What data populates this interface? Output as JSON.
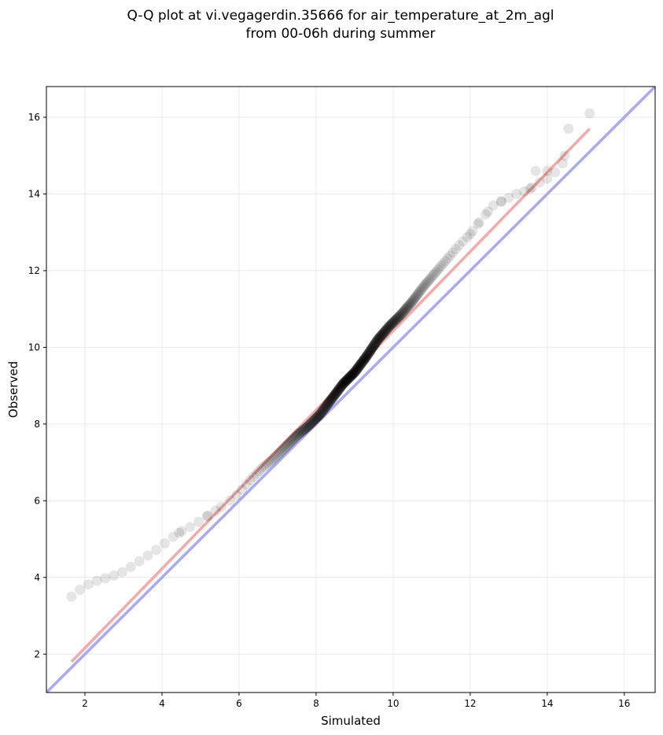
{
  "chart_data": {
    "type": "scatter",
    "title_lines": [
      "Q-Q plot at vi.vegagerdin.35666 for air_temperature_at_2m_agl",
      "from 00-06h during summer"
    ],
    "xlabel": "Simulated",
    "ylabel": "Observed",
    "xlim": [
      1.0,
      16.8
    ],
    "ylim": [
      1.0,
      16.8
    ],
    "xticks": [
      2,
      4,
      6,
      8,
      10,
      12,
      14,
      16
    ],
    "yticks": [
      2,
      4,
      6,
      8,
      10,
      12,
      14,
      16
    ],
    "grid": true,
    "colors": {
      "points": "#000000",
      "identity_line": "#a9a9f5",
      "fit_line": "#f5a9a9",
      "grid": "#dcdcdc"
    },
    "identity_line": {
      "x": [
        1.0,
        16.8
      ],
      "y": [
        1.0,
        16.8
      ]
    },
    "fit_line": {
      "x": [
        1.65,
        15.1
      ],
      "y": [
        1.8,
        15.7
      ]
    },
    "quantile_curve": {
      "x": [
        1.65,
        1.75,
        1.9,
        2.05,
        2.25,
        2.45,
        2.75,
        3.0,
        3.3,
        3.6,
        3.9,
        4.2,
        4.5,
        4.8,
        5.1,
        5.4,
        5.7,
        6.0,
        6.3,
        6.6,
        6.9,
        7.2,
        7.5,
        7.8,
        8.1,
        8.4,
        8.7,
        9.0,
        9.3,
        9.6,
        9.9,
        10.2,
        10.5,
        10.8,
        11.1,
        11.4,
        11.7,
        12.0,
        12.3,
        12.6,
        12.9,
        13.2,
        13.5,
        13.8,
        14.1,
        14.4
      ],
      "y": [
        3.5,
        3.6,
        3.7,
        3.8,
        3.9,
        3.95,
        4.05,
        4.15,
        4.35,
        4.55,
        4.75,
        5.0,
        5.2,
        5.35,
        5.55,
        5.75,
        5.95,
        6.2,
        6.55,
        6.85,
        7.1,
        7.4,
        7.7,
        7.95,
        8.25,
        8.65,
        9.05,
        9.35,
        9.75,
        10.2,
        10.55,
        10.85,
        11.2,
        11.6,
        11.95,
        12.3,
        12.65,
        12.95,
        13.35,
        13.7,
        13.85,
        14.0,
        14.1,
        14.3,
        14.45,
        14.8
      ]
    },
    "outlier_points": [
      {
        "x": 13.7,
        "y": 14.6
      },
      {
        "x": 14.0,
        "y": 14.6
      },
      {
        "x": 14.45,
        "y": 15.0
      },
      {
        "x": 14.55,
        "y": 15.7
      },
      {
        "x": 15.1,
        "y": 16.1
      }
    ]
  }
}
